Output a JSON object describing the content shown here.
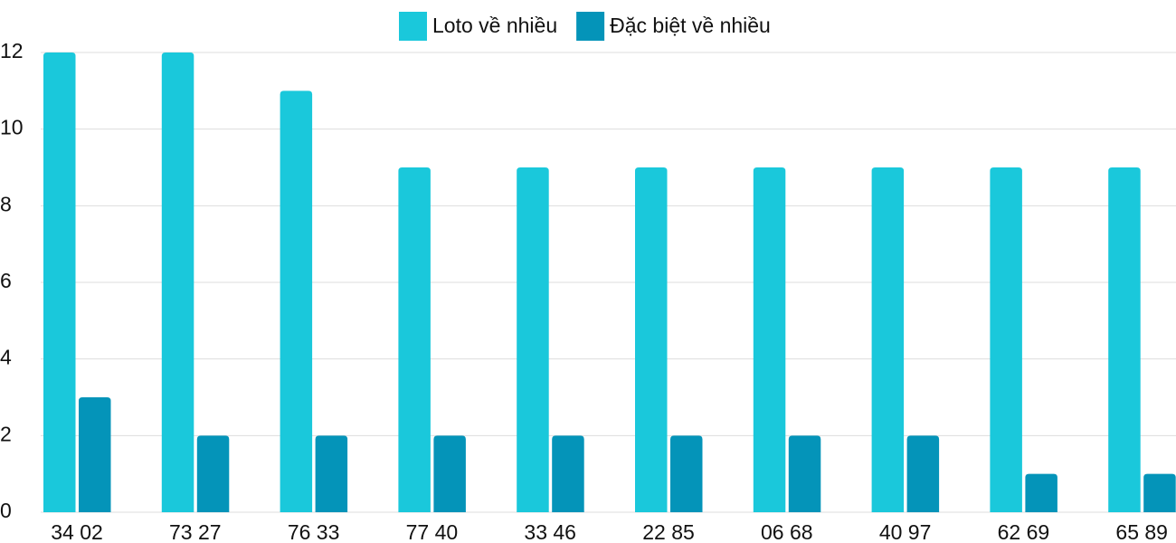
{
  "chart_data": {
    "type": "bar",
    "categories": [
      "34 02",
      "73 27",
      "76 33",
      "77 40",
      "33 46",
      "22 85",
      "06 68",
      "40 97",
      "62 69",
      "65 89"
    ],
    "series": [
      {
        "name": "Loto về nhiều",
        "color": "#1ac8db",
        "values": [
          12,
          12,
          11,
          9,
          9,
          9,
          9,
          9,
          9,
          9
        ]
      },
      {
        "name": "Đặc biệt về nhiều",
        "color": "#0494b9",
        "values": [
          3,
          2,
          2,
          2,
          2,
          2,
          2,
          2,
          1,
          1
        ]
      }
    ],
    "ylim": [
      0,
      12
    ],
    "yticks": [
      0,
      2,
      4,
      6,
      8,
      10,
      12
    ],
    "grid": true,
    "legend": "top"
  }
}
